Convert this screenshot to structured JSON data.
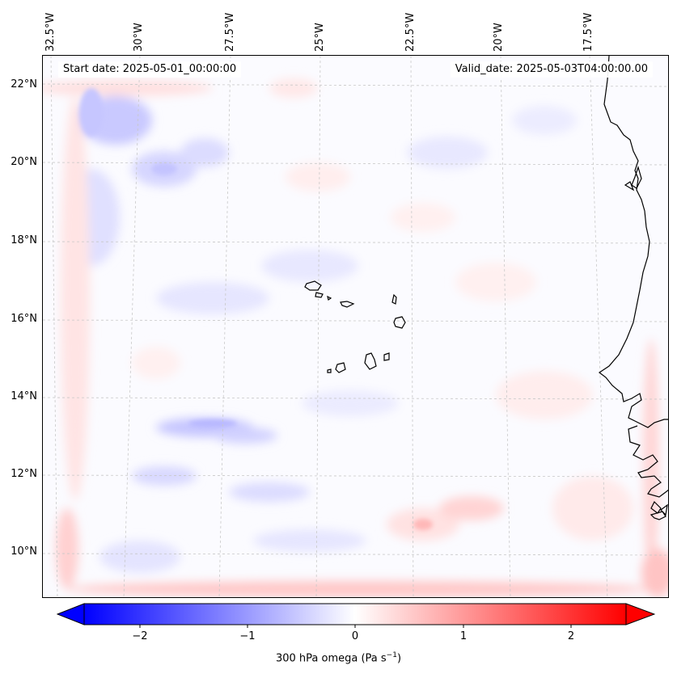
{
  "header": {
    "start_date": "Start date: 2025-05-01_00:00:00",
    "valid_date": "Valid_date: 2025-05-03T04:00:00.00"
  },
  "axes": {
    "lon_labels": [
      "32.5°W",
      "30°W",
      "27.5°W",
      "25°W",
      "22.5°W",
      "20°W",
      "17.5°W"
    ],
    "lat_labels": [
      "22°N",
      "20°N",
      "18°N",
      "16°N",
      "14°N",
      "12°N",
      "10°N"
    ]
  },
  "colorbar": {
    "label": "300 hPa omega (Pa s",
    "label_exponent": "−1",
    "label_close": ")",
    "ticks": [
      "−2",
      "−1",
      "0",
      "1",
      "2"
    ],
    "vmin": -2.7,
    "vmax": 2.7,
    "low_color": "#0000ff",
    "mid_color": "#ffffff",
    "high_color": "#ff0000"
  },
  "colors": {
    "coastline": "#000000",
    "gridline": "#c8c8c8",
    "background_field": "#fbfbff"
  }
}
